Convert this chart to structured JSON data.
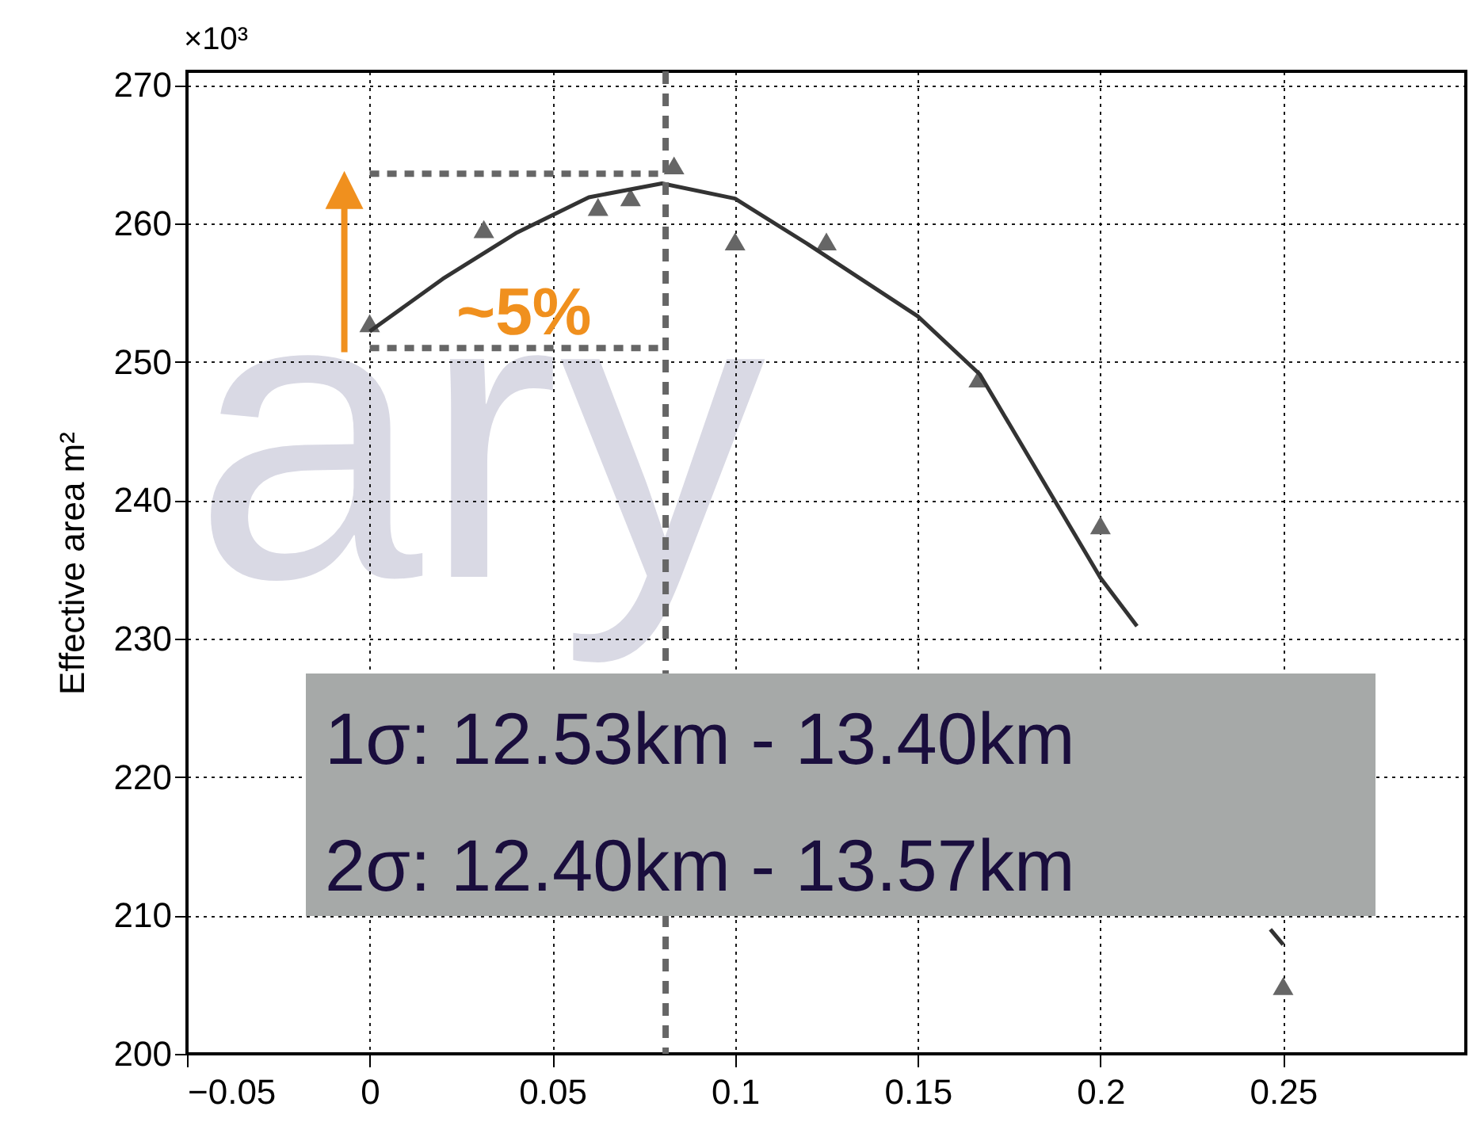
{
  "chart_data": {
    "type": "scatter",
    "ylabel": "Effective area  m²",
    "xlim": [
      -0.05,
      0.3
    ],
    "ylim": [
      200,
      271
    ],
    "xticks": [
      -0.05,
      0,
      0.05,
      0.1,
      0.15,
      0.2,
      0.25
    ],
    "yticks": [
      200,
      210,
      220,
      230,
      240,
      250,
      260,
      270
    ],
    "grid": true,
    "series": [
      {
        "marker": "triangle",
        "color": "#666666",
        "x": [
          0,
          0.03125,
          0.0625,
          0.0714,
          0.0833,
          0.1,
          0.125,
          0.1667,
          0.2,
          0.25
        ],
        "values": [
          252.8,
          259.6,
          261.2,
          261.9,
          264.2,
          258.7,
          258.7,
          248.8,
          238.2,
          204.9
        ]
      },
      {
        "type": "line",
        "color": "#333333",
        "x": [
          0,
          0.02,
          0.04,
          0.06,
          0.08,
          0.1,
          0.12,
          0.15,
          0.167,
          0.2,
          0.21,
          0.235,
          0.2465,
          0.25
        ],
        "values": [
          252.2,
          256.0,
          259.3,
          261.9,
          262.9,
          261.8,
          258.5,
          253.3,
          249.1,
          234.4,
          230.9,
          null,
          209.0,
          207.9
        ]
      }
    ],
    "ref_lines": [
      {
        "axis": "x",
        "value": 0.081,
        "color": "#666666",
        "line_style": "dashed"
      }
    ],
    "annotations": [
      "×10³",
      "ary",
      "~5%",
      "1σ: 12.53km - 13.40km",
      "2σ: 12.40km - 13.57km"
    ]
  }
}
